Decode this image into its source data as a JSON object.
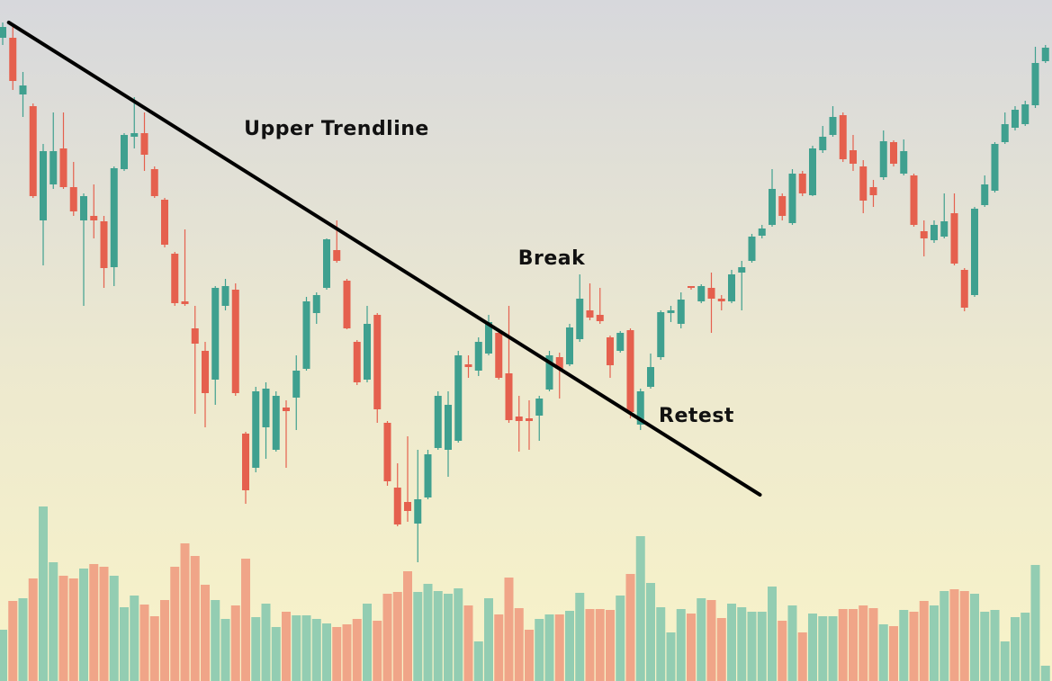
{
  "chart_data": {
    "type": "candlestick",
    "annotations": [
      "Upper Trendline",
      "Break",
      "Retest"
    ],
    "ylim": [
      243,
      1000
    ],
    "vlim": [
      0,
      757
    ],
    "colors": {
      "up": "#3fa08f",
      "down": "#e5604e",
      "up_volume": "#93cdb2",
      "down_volume": "#f0a588",
      "trendline": "#000000"
    },
    "trendline": {
      "x": [
        0.6,
        74.8
      ],
      "y": [
        975,
        450
      ]
    },
    "ohlc": [
      [
        958,
        975,
        950,
        970
      ],
      [
        958,
        970,
        900,
        910
      ],
      [
        895,
        920,
        870,
        905
      ],
      [
        882,
        885,
        780,
        782
      ],
      [
        755,
        840,
        705,
        832
      ],
      [
        795,
        875,
        790,
        832
      ],
      [
        835,
        875,
        790,
        792
      ],
      [
        792,
        820,
        760,
        765
      ],
      [
        755,
        785,
        660,
        782
      ],
      [
        760,
        795,
        735,
        755
      ],
      [
        754,
        760,
        680,
        702
      ],
      [
        703,
        815,
        682,
        813
      ],
      [
        812,
        852,
        810,
        850
      ],
      [
        848,
        892,
        835,
        852
      ],
      [
        852,
        875,
        810,
        828
      ],
      [
        812,
        815,
        780,
        782
      ],
      [
        778,
        780,
        725,
        728
      ],
      [
        718,
        720,
        660,
        663
      ],
      [
        665,
        745,
        660,
        662
      ],
      [
        635,
        660,
        540,
        618
      ],
      [
        610,
        620,
        525,
        563
      ],
      [
        578,
        682,
        550,
        680
      ],
      [
        660,
        690,
        655,
        682
      ],
      [
        678,
        685,
        560,
        563
      ],
      [
        518,
        520,
        440,
        455
      ],
      [
        480,
        570,
        475,
        565
      ],
      [
        525,
        575,
        490,
        568
      ],
      [
        500,
        565,
        498,
        560
      ],
      [
        547,
        555,
        480,
        543
      ],
      [
        558,
        605,
        522,
        588
      ],
      [
        590,
        670,
        588,
        665
      ],
      [
        652,
        675,
        640,
        672
      ],
      [
        680,
        735,
        678,
        734
      ],
      [
        722,
        755,
        708,
        710
      ],
      [
        688,
        690,
        634,
        635
      ],
      [
        620,
        622,
        572,
        575
      ],
      [
        578,
        660,
        575,
        640
      ],
      [
        650,
        652,
        530,
        545
      ],
      [
        530,
        532,
        460,
        465
      ],
      [
        458,
        485,
        415,
        417
      ],
      [
        442,
        515,
        420,
        432
      ],
      [
        418,
        500,
        375,
        445
      ],
      [
        447,
        500,
        445,
        495
      ],
      [
        502,
        565,
        500,
        560
      ],
      [
        500,
        565,
        470,
        550
      ],
      [
        510,
        610,
        508,
        605
      ],
      [
        595,
        605,
        580,
        592
      ],
      [
        588,
        625,
        582,
        620
      ],
      [
        607,
        650,
        605,
        642
      ],
      [
        630,
        635,
        578,
        580
      ],
      [
        585,
        660,
        530,
        533
      ],
      [
        537,
        560,
        498,
        532
      ],
      [
        535,
        555,
        500,
        532
      ],
      [
        538,
        560,
        510,
        557
      ],
      [
        567,
        610,
        565,
        605
      ],
      [
        603,
        608,
        557,
        590
      ],
      [
        595,
        640,
        593,
        636
      ],
      [
        623,
        695,
        620,
        668
      ],
      [
        655,
        685,
        644,
        647
      ],
      [
        650,
        680,
        640,
        643
      ],
      [
        625,
        627,
        580,
        594
      ],
      [
        610,
        632,
        608,
        630
      ],
      [
        633,
        635,
        535,
        542
      ],
      [
        528,
        568,
        522,
        565
      ],
      [
        570,
        607,
        568,
        592
      ],
      [
        603,
        655,
        600,
        653
      ],
      [
        652,
        660,
        642,
        655
      ],
      [
        640,
        675,
        635,
        667
      ],
      [
        682,
        682,
        678,
        680
      ],
      [
        665,
        684,
        663,
        682
      ],
      [
        680,
        697,
        630,
        668
      ],
      [
        668,
        672,
        655,
        665
      ],
      [
        665,
        700,
        663,
        695
      ],
      [
        697,
        710,
        655,
        703
      ],
      [
        710,
        740,
        708,
        737
      ],
      [
        738,
        750,
        735,
        746
      ],
      [
        750,
        812,
        748,
        790
      ],
      [
        782,
        785,
        755,
        760
      ],
      [
        752,
        812,
        750,
        807
      ],
      [
        807,
        810,
        782,
        785
      ],
      [
        783,
        838,
        782,
        835
      ],
      [
        833,
        860,
        830,
        848
      ],
      [
        850,
        882,
        848,
        870
      ],
      [
        872,
        875,
        820,
        823
      ],
      [
        833,
        850,
        810,
        818
      ],
      [
        815,
        822,
        763,
        777
      ],
      [
        792,
        800,
        770,
        783
      ],
      [
        803,
        855,
        800,
        843
      ],
      [
        842,
        844,
        815,
        818
      ],
      [
        807,
        845,
        805,
        832
      ],
      [
        805,
        807,
        748,
        750
      ],
      [
        743,
        755,
        715,
        735
      ],
      [
        733,
        755,
        730,
        750
      ],
      [
        737,
        785,
        735,
        754
      ],
      [
        763,
        785,
        705,
        707
      ],
      [
        700,
        702,
        654,
        658
      ],
      [
        672,
        770,
        670,
        768
      ],
      [
        772,
        805,
        770,
        795
      ],
      [
        788,
        842,
        786,
        840
      ],
      [
        842,
        875,
        840,
        862
      ],
      [
        858,
        882,
        855,
        878
      ],
      [
        862,
        888,
        860,
        884
      ],
      [
        883,
        948,
        880,
        930
      ],
      [
        932,
        950,
        930,
        947
      ]
    ],
    "volume": [
      57,
      89,
      92,
      114,
      194,
      132,
      117,
      114,
      125,
      130,
      127,
      117,
      82,
      95,
      85,
      72,
      90,
      127,
      153,
      139,
      107,
      90,
      69,
      84,
      136,
      71,
      86,
      60,
      77,
      73,
      73,
      69,
      64,
      60,
      63,
      69,
      86,
      67,
      97,
      99,
      122,
      99,
      108,
      100,
      97,
      103,
      84,
      44,
      92,
      74,
      115,
      81,
      57,
      69,
      74,
      74,
      78,
      98,
      80,
      80,
      79,
      95,
      119,
      161,
      109,
      82,
      54,
      80,
      75,
      92,
      90,
      70,
      86,
      82,
      77,
      77,
      105,
      67,
      84,
      54,
      75,
      72,
      72,
      80,
      80,
      84,
      81,
      63,
      61,
      79,
      77,
      89,
      84,
      100,
      102,
      100,
      97,
      77,
      79,
      44,
      71,
      76,
      129,
      17
    ]
  }
}
